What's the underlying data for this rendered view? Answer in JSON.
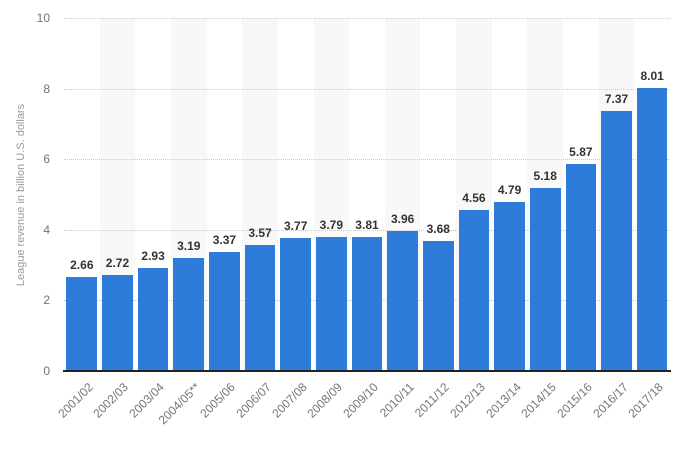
{
  "chart_data": {
    "type": "bar",
    "title": "",
    "xlabel": "",
    "ylabel": "League revenue in billion U.S. dollars",
    "categories": [
      "2001/02",
      "2002/03",
      "2003/04",
      "2004/05**",
      "2005/06",
      "2006/07",
      "2007/08",
      "2008/09",
      "2009/10",
      "2010/11",
      "2011/12",
      "2012/13",
      "2013/14",
      "2014/15",
      "2015/16",
      "2016/17",
      "2017/18"
    ],
    "values": [
      2.66,
      2.72,
      2.93,
      3.19,
      3.37,
      3.57,
      3.77,
      3.79,
      3.81,
      3.96,
      3.68,
      4.56,
      4.79,
      5.18,
      5.87,
      7.37,
      8.01
    ],
    "ylim": [
      0,
      10
    ],
    "yticks": [
      0,
      2,
      4,
      6,
      8,
      10
    ],
    "grid": "horizontal-dotted",
    "legend": "none",
    "colors": {
      "bar": "#2e7cd9",
      "column_band": "#f8f8f8",
      "gridline": "#c9c9c9",
      "axis_line": "#222222",
      "value_label": "#333333",
      "tick_label": "#737373",
      "x_label": "#757575",
      "axis_title": "#9a9a9a",
      "background": "#ffffff"
    }
  }
}
